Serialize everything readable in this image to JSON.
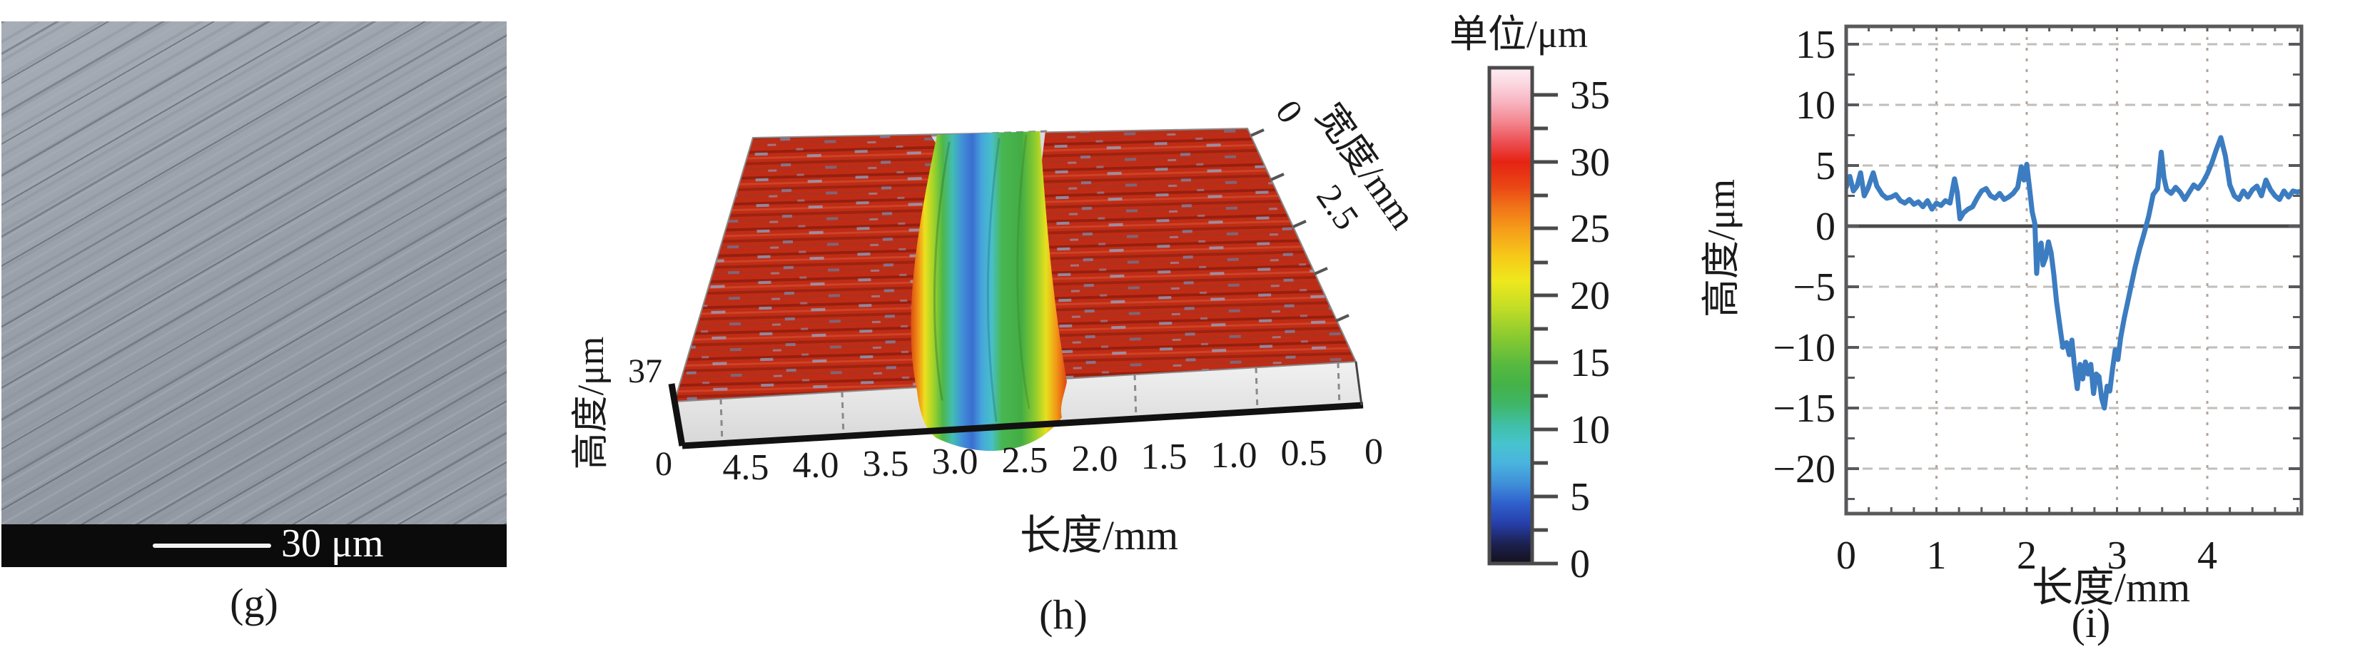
{
  "panels": {
    "g": {
      "label": "(g)",
      "scale_bar": "30 μm"
    },
    "h": {
      "label": "(h)",
      "xlabel": "长度/mm",
      "x_ticks": [
        "4.5",
        "4.0",
        "3.5",
        "3.0",
        "2.5",
        "2.0",
        "1.5",
        "1.0",
        "0.5",
        "0"
      ],
      "height_axis_label": "高度/μm",
      "height_ticks": [
        "37",
        "0"
      ],
      "width_axis_label": "宽度/mm",
      "width_ticks": [
        "0",
        "2.5"
      ]
    },
    "colorbar": {
      "title": "单位/μm",
      "ticks": [
        "35",
        "30",
        "25",
        "20",
        "15",
        "10",
        "5",
        "0"
      ]
    },
    "i": {
      "label": "(i)",
      "xlabel": "长度/mm",
      "ylabel": "高度/μm"
    }
  },
  "chart_data": [
    {
      "id": "surface-3d",
      "type": "heatmap",
      "title": "3D wear-track surface topography",
      "xlabel": "长度/mm",
      "xticks": [
        4.5,
        4.0,
        3.5,
        3.0,
        2.5,
        2.0,
        1.5,
        1.0,
        0.5,
        0
      ],
      "ylabel": "宽度/mm",
      "yticks": [
        0,
        2.5
      ],
      "zlabel": "高度/μm",
      "zlim": [
        0,
        37
      ],
      "colorbar_title": "单位/μm",
      "colorbar_ticks": [
        35,
        30,
        25,
        20,
        15,
        10,
        5,
        0
      ],
      "plateau_height_um": 30,
      "groove_center_length_mm": 2.8,
      "groove_width_mm": 1.1,
      "groove_floor_height_um": 10,
      "legend_position": "right"
    },
    {
      "id": "profile",
      "type": "line",
      "xlabel": "长度/mm",
      "ylabel": "高度/μm",
      "xlim": [
        0,
        5.05
      ],
      "ylim": [
        -23.7,
        16.5
      ],
      "xticks": [
        0,
        1,
        2,
        3,
        4
      ],
      "xtick_labels": [
        "0",
        "1",
        "2",
        "3",
        "4"
      ],
      "yticks": [
        15,
        10,
        5,
        0,
        -5,
        -10,
        -15,
        -20
      ],
      "ytick_labels": [
        "15",
        "10",
        "5",
        "0",
        "−5",
        "−10",
        "−15",
        "−20"
      ],
      "grid": "dashed",
      "zero_line": true,
      "line_color": "#3c7cc1",
      "x": [
        0,
        0.04,
        0.08,
        0.12,
        0.16,
        0.2,
        0.24,
        0.3,
        0.34,
        0.4,
        0.45,
        0.5,
        0.55,
        0.6,
        0.65,
        0.7,
        0.75,
        0.8,
        0.85,
        0.9,
        0.95,
        1,
        1.05,
        1.1,
        1.15,
        1.2,
        1.23,
        1.26,
        1.3,
        1.35,
        1.4,
        1.45,
        1.5,
        1.55,
        1.6,
        1.65,
        1.7,
        1.75,
        1.8,
        1.85,
        1.9,
        1.94,
        1.97,
        2,
        2.03,
        2.06,
        2.09,
        2.11,
        2.13,
        2.16,
        2.18,
        2.21,
        2.24,
        2.27,
        2.3,
        2.33,
        2.37,
        2.4,
        2.44,
        2.47,
        2.5,
        2.53,
        2.56,
        2.59,
        2.62,
        2.65,
        2.68,
        2.71,
        2.74,
        2.77,
        2.8,
        2.83,
        2.86,
        2.89,
        2.92,
        2.95,
        2.98,
        3.01,
        3.04,
        3.08,
        3.12,
        3.16,
        3.2,
        3.25,
        3.3,
        3.35,
        3.4,
        3.45,
        3.49,
        3.52,
        3.55,
        3.6,
        3.65,
        3.7,
        3.75,
        3.8,
        3.85,
        3.9,
        3.95,
        4,
        4.05,
        4.1,
        4.15,
        4.2,
        4.25,
        4.3,
        4.35,
        4.4,
        4.45,
        4.5,
        4.55,
        4.6,
        4.65,
        4.7,
        4.75,
        4.8,
        4.85,
        4.9,
        4.95,
        5,
        5.04
      ],
      "y": [
        3.2,
        4.1,
        2.9,
        3.3,
        4.4,
        2.5,
        3.1,
        4.4,
        3.3,
        2.6,
        2.3,
        2.4,
        2.6,
        2.1,
        1.9,
        2.2,
        1.8,
        2,
        1.6,
        2.1,
        1.4,
        1.9,
        1.7,
        2.1,
        1.9,
        3.9,
        2.8,
        0.6,
        1.1,
        1.4,
        1.6,
        2.3,
        2.9,
        3.1,
        2.5,
        2.3,
        2.7,
        2.2,
        2.4,
        2.7,
        3.2,
        4.9,
        3.8,
        5.1,
        3.2,
        1.2,
        0.2,
        -3.9,
        -1.8,
        -1.4,
        -3.2,
        -2.6,
        -1.3,
        -2.2,
        -4,
        -6.2,
        -8.4,
        -10,
        -9.6,
        -10.6,
        -9.4,
        -11.6,
        -13.4,
        -11.4,
        -12.6,
        -11.2,
        -12.2,
        -11.4,
        -13.8,
        -12.2,
        -12.4,
        -14.2,
        -15,
        -13.2,
        -13.6,
        -11.8,
        -10.2,
        -11,
        -9.2,
        -7.6,
        -6.2,
        -4.8,
        -3.4,
        -1.9,
        -0.6,
        0.8,
        2.6,
        3.1,
        6.1,
        4,
        3,
        2.7,
        3.2,
        2.8,
        2.2,
        2.8,
        3.4,
        3.1,
        3.6,
        4.3,
        5.2,
        6.3,
        7.3,
        5.8,
        3.4,
        2.5,
        2.2,
        2.9,
        2.4,
        3,
        3.3,
        2.5,
        3.8,
        3,
        2.5,
        2.2,
        2.9,
        2.4,
        2.9,
        2.8,
        2.9
      ]
    }
  ],
  "colors": {
    "line_blue": "#3c7cc1",
    "surface_red": "#bf2c16",
    "plot_border": "#58595b",
    "grid_gray": "#c2beba",
    "grid_warm": "#b3a49c"
  }
}
